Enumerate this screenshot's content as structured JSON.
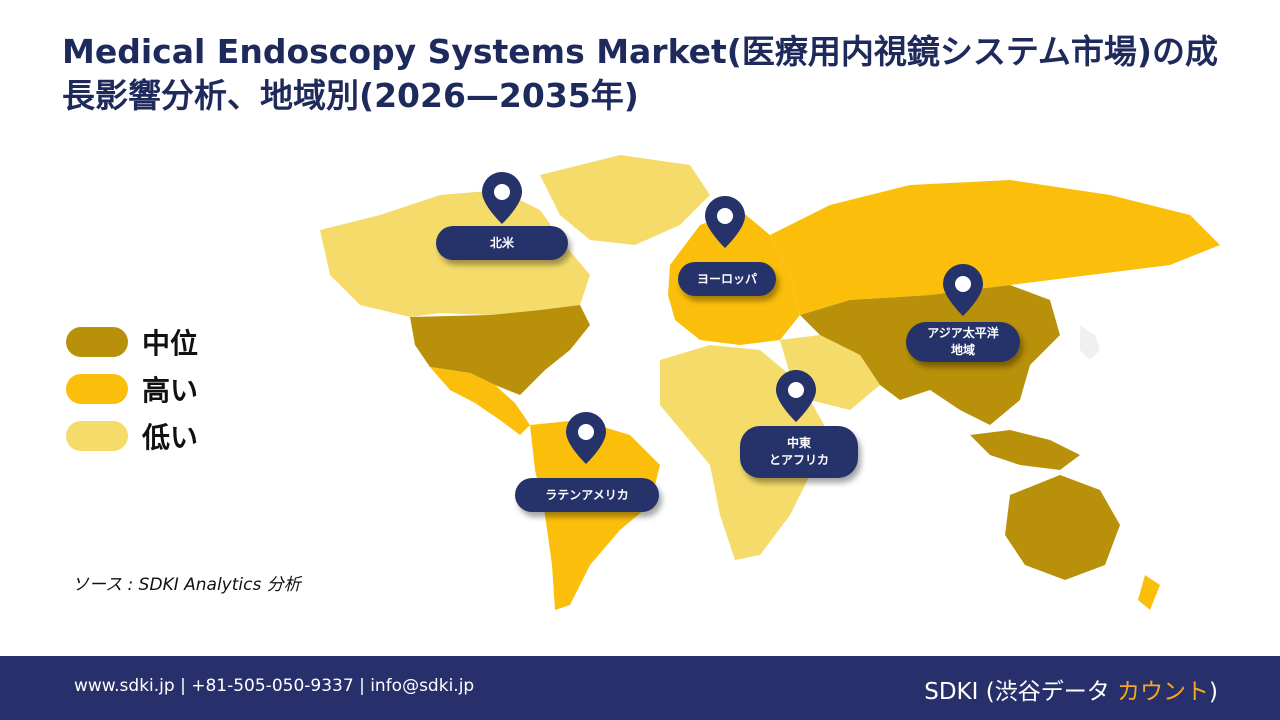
{
  "title": "Medical Endoscopy Systems Market(医療用内視鏡システム市場)の成長影響分析、地域別(2026—2035年)",
  "legend": [
    {
      "label": "中位",
      "color": "#b8900a"
    },
    {
      "label": "高い",
      "color": "#fbbf0b"
    },
    {
      "label": "低い",
      "color": "#f5dc6a"
    }
  ],
  "regions": [
    {
      "label": "北米",
      "level": "中位"
    },
    {
      "label": "ヨーロッパ",
      "level": "高い"
    },
    {
      "label": "アジア太平洋\n地域",
      "level": "中位"
    },
    {
      "label": "中東\nとアフリカ",
      "level": "低い"
    },
    {
      "label": "ラテンアメリカ",
      "level": "高い"
    }
  ],
  "source": "ソース : SDKI Analytics 分析",
  "footer": {
    "contact": "www.sdki.jp | +81-505-050-9337 | info@sdki.jp",
    "brand_prefix": "SDKI (渋谷データ ",
    "brand_accent": "カウント",
    "brand_suffix": ")"
  }
}
